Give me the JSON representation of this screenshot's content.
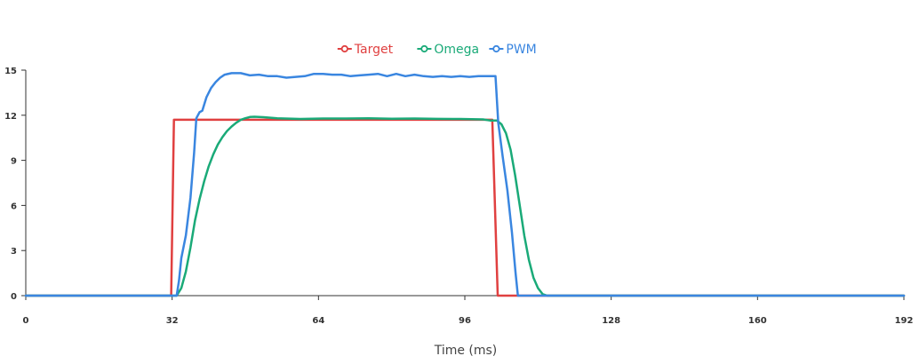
{
  "chart_data": {
    "type": "line",
    "title": "",
    "xlabel": "Time (ms)",
    "ylabel": "",
    "xlim": [
      0,
      192
    ],
    "ylim": [
      0,
      15
    ],
    "x_ticks": [
      0,
      32,
      64,
      96,
      128,
      160,
      192
    ],
    "y_ticks": [
      0,
      3,
      6,
      9,
      12,
      15
    ],
    "grid": false,
    "legend_position": "top-center",
    "series": [
      {
        "name": "Target",
        "color": "#e04040",
        "points": [
          [
            0,
            0
          ],
          [
            31.8,
            0
          ],
          [
            32.4,
            11.7
          ],
          [
            102,
            11.7
          ],
          [
            103.2,
            0
          ],
          [
            192,
            0
          ]
        ]
      },
      {
        "name": "Omega",
        "color": "#1aaa78",
        "points": [
          [
            0,
            0
          ],
          [
            33,
            0
          ],
          [
            34,
            0.5
          ],
          [
            35,
            1.6
          ],
          [
            36,
            3.2
          ],
          [
            37,
            5.0
          ],
          [
            38,
            6.4
          ],
          [
            39,
            7.6
          ],
          [
            40,
            8.6
          ],
          [
            41,
            9.4
          ],
          [
            42,
            10.05
          ],
          [
            43,
            10.55
          ],
          [
            44,
            10.95
          ],
          [
            45,
            11.25
          ],
          [
            46,
            11.5
          ],
          [
            47,
            11.7
          ],
          [
            48,
            11.8
          ],
          [
            49,
            11.88
          ],
          [
            50,
            11.9
          ],
          [
            52,
            11.87
          ],
          [
            55,
            11.8
          ],
          [
            60,
            11.75
          ],
          [
            65,
            11.78
          ],
          [
            70,
            11.78
          ],
          [
            75,
            11.8
          ],
          [
            80,
            11.77
          ],
          [
            85,
            11.78
          ],
          [
            90,
            11.76
          ],
          [
            95,
            11.75
          ],
          [
            100,
            11.72
          ],
          [
            101.5,
            11.65
          ],
          [
            103,
            11.65
          ],
          [
            104,
            11.4
          ],
          [
            105,
            10.8
          ],
          [
            106,
            9.7
          ],
          [
            107,
            8.0
          ],
          [
            108,
            6.0
          ],
          [
            109,
            4.0
          ],
          [
            110,
            2.4
          ],
          [
            111,
            1.2
          ],
          [
            112,
            0.5
          ],
          [
            113,
            0.1
          ],
          [
            114,
            0
          ],
          [
            192,
            0
          ]
        ]
      },
      {
        "name": "PWM",
        "color": "#3a86e0",
        "points": [
          [
            0,
            0
          ],
          [
            33,
            0
          ],
          [
            33.5,
            1.0
          ],
          [
            34,
            2.5
          ],
          [
            35,
            4.0
          ],
          [
            36,
            6.5
          ],
          [
            36.8,
            9.5
          ],
          [
            37.3,
            11.8
          ],
          [
            38,
            12.2
          ],
          [
            38.6,
            12.3
          ],
          [
            39.5,
            13.2
          ],
          [
            40.5,
            13.8
          ],
          [
            41.5,
            14.2
          ],
          [
            42.5,
            14.5
          ],
          [
            43.5,
            14.7
          ],
          [
            45,
            14.8
          ],
          [
            47,
            14.8
          ],
          [
            49,
            14.65
          ],
          [
            51,
            14.7
          ],
          [
            53,
            14.6
          ],
          [
            55,
            14.6
          ],
          [
            57,
            14.5
          ],
          [
            59,
            14.55
          ],
          [
            61,
            14.6
          ],
          [
            63,
            14.75
          ],
          [
            65,
            14.75
          ],
          [
            67,
            14.7
          ],
          [
            69,
            14.7
          ],
          [
            71,
            14.6
          ],
          [
            73,
            14.65
          ],
          [
            75,
            14.7
          ],
          [
            77,
            14.75
          ],
          [
            79,
            14.6
          ],
          [
            81,
            14.75
          ],
          [
            83,
            14.6
          ],
          [
            85,
            14.7
          ],
          [
            87,
            14.6
          ],
          [
            89,
            14.55
          ],
          [
            91,
            14.6
          ],
          [
            93,
            14.55
          ],
          [
            95,
            14.6
          ],
          [
            97,
            14.55
          ],
          [
            99,
            14.6
          ],
          [
            102,
            14.6
          ],
          [
            102.7,
            14.6
          ],
          [
            103.3,
            11.5
          ],
          [
            104.3,
            9.2
          ],
          [
            105.3,
            7.0
          ],
          [
            106.3,
            4.2
          ],
          [
            107.1,
            1.5
          ],
          [
            107.6,
            0
          ],
          [
            192,
            0
          ]
        ]
      }
    ]
  }
}
